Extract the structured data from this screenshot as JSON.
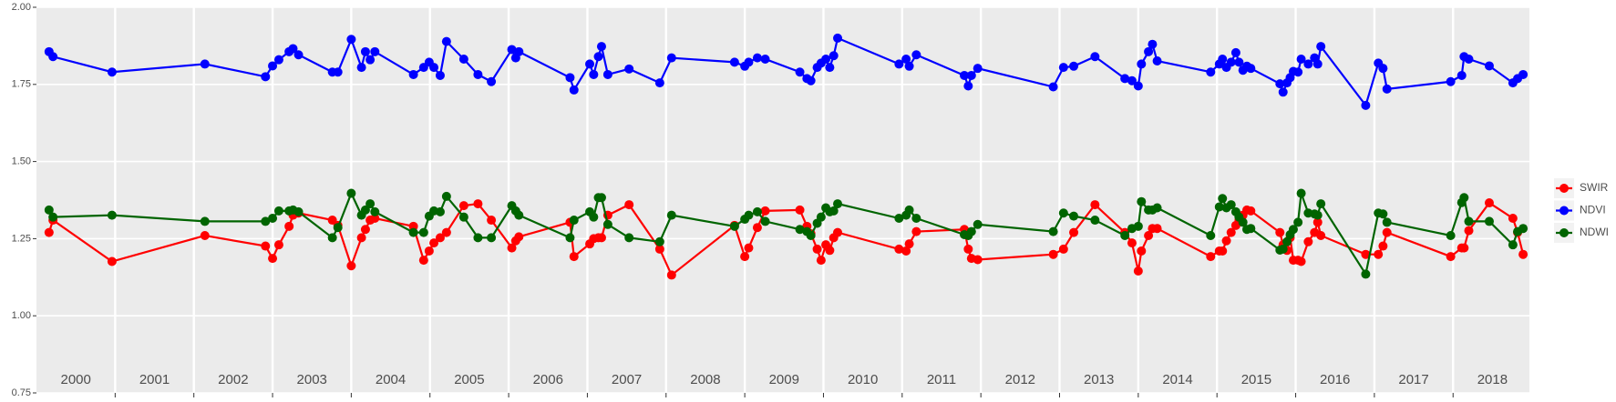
{
  "chart_data": {
    "type": "line",
    "x": [
      2000.16,
      2000.21,
      2000.96,
      2002.14,
      2002.91,
      2003.0,
      2003.08,
      2003.21,
      2003.26,
      2003.33,
      2003.76,
      2003.83,
      2004.0,
      2004.13,
      2004.18,
      2004.24,
      2004.3,
      2004.79,
      2004.92,
      2004.99,
      2005.05,
      2005.13,
      2005.21,
      2005.43,
      2005.61,
      2005.78,
      2006.04,
      2006.09,
      2006.13,
      2006.78,
      2006.83,
      2007.03,
      2007.08,
      2007.14,
      2007.18,
      2007.26,
      2007.53,
      2007.92,
      2008.07,
      2008.87,
      2009.0,
      2009.05,
      2009.16,
      2009.26,
      2009.7,
      2009.79,
      2009.84,
      2009.92,
      2009.97,
      2010.03,
      2010.08,
      2010.13,
      2010.18,
      2010.96,
      2011.05,
      2011.09,
      2011.18,
      2011.79,
      2011.84,
      2011.88,
      2011.96,
      2012.92,
      2013.05,
      2013.18,
      2013.45,
      2013.83,
      2013.92,
      2014.0,
      2014.04,
      2014.13,
      2014.18,
      2014.24,
      2014.92,
      2015.03,
      2015.07,
      2015.12,
      2015.18,
      2015.24,
      2015.28,
      2015.33,
      2015.38,
      2015.43,
      2015.8,
      2015.84,
      2015.89,
      2015.93,
      2015.97,
      2016.03,
      2016.07,
      2016.16,
      2016.24,
      2016.28,
      2016.32,
      2016.89,
      2017.05,
      2017.11,
      2017.16,
      2017.97,
      2018.11,
      2018.14,
      2018.2,
      2018.46,
      2018.76,
      2018.82,
      2018.89
    ],
    "series": [
      {
        "name": "SWIR",
        "color": "#ff0000",
        "values": [
          1.27,
          1.31,
          1.176,
          1.26,
          1.226,
          1.186,
          1.23,
          1.29,
          1.326,
          1.333,
          1.31,
          1.293,
          1.162,
          1.253,
          1.28,
          1.31,
          1.316,
          1.29,
          1.18,
          1.21,
          1.236,
          1.253,
          1.27,
          1.357,
          1.363,
          1.31,
          1.22,
          1.243,
          1.256,
          1.303,
          1.192,
          1.233,
          1.25,
          1.253,
          1.253,
          1.326,
          1.36,
          1.216,
          1.132,
          1.293,
          1.192,
          1.22,
          1.286,
          1.34,
          1.343,
          1.29,
          1.266,
          1.216,
          1.18,
          1.23,
          1.212,
          1.253,
          1.27,
          1.216,
          1.21,
          1.233,
          1.273,
          1.28,
          1.216,
          1.186,
          1.182,
          1.199,
          1.216,
          1.27,
          1.36,
          1.27,
          1.236,
          1.145,
          1.21,
          1.26,
          1.283,
          1.283,
          1.192,
          1.21,
          1.21,
          1.243,
          1.27,
          1.293,
          1.31,
          1.326,
          1.343,
          1.34,
          1.27,
          1.23,
          1.212,
          1.253,
          1.18,
          1.18,
          1.176,
          1.24,
          1.27,
          1.303,
          1.26,
          1.199,
          1.199,
          1.226,
          1.27,
          1.192,
          1.22,
          1.22,
          1.276,
          1.366,
          1.316,
          1.27,
          1.199
        ]
      },
      {
        "name": "NDVI",
        "color": "#0000ff",
        "values": [
          1.856,
          1.84,
          1.79,
          1.816,
          1.775,
          1.81,
          1.83,
          1.856,
          1.866,
          1.846,
          1.79,
          1.79,
          1.896,
          1.805,
          1.856,
          1.83,
          1.856,
          1.782,
          1.805,
          1.822,
          1.805,
          1.779,
          1.889,
          1.832,
          1.782,
          1.759,
          1.863,
          1.836,
          1.856,
          1.772,
          1.732,
          1.816,
          1.782,
          1.84,
          1.873,
          1.782,
          1.8,
          1.755,
          1.836,
          1.822,
          1.809,
          1.822,
          1.836,
          1.832,
          1.79,
          1.769,
          1.762,
          1.805,
          1.819,
          1.832,
          1.805,
          1.843,
          1.9,
          1.816,
          1.832,
          1.809,
          1.846,
          1.779,
          1.745,
          1.779,
          1.802,
          1.742,
          1.805,
          1.809,
          1.84,
          1.769,
          1.762,
          1.745,
          1.816,
          1.856,
          1.88,
          1.826,
          1.79,
          1.816,
          1.832,
          1.805,
          1.822,
          1.853,
          1.822,
          1.796,
          1.809,
          1.802,
          1.752,
          1.725,
          1.755,
          1.772,
          1.792,
          1.79,
          1.832,
          1.816,
          1.836,
          1.816,
          1.873,
          1.682,
          1.819,
          1.802,
          1.735,
          1.759,
          1.779,
          1.84,
          1.832,
          1.81,
          1.755,
          1.769,
          1.782
        ]
      },
      {
        "name": "NDWI",
        "color": "#006400",
        "values": [
          1.343,
          1.32,
          1.326,
          1.306,
          1.306,
          1.316,
          1.34,
          1.34,
          1.343,
          1.337,
          1.253,
          1.286,
          1.397,
          1.326,
          1.343,
          1.363,
          1.337,
          1.27,
          1.27,
          1.323,
          1.34,
          1.337,
          1.387,
          1.32,
          1.253,
          1.253,
          1.357,
          1.34,
          1.326,
          1.253,
          1.31,
          1.337,
          1.32,
          1.383,
          1.383,
          1.296,
          1.253,
          1.24,
          1.326,
          1.29,
          1.313,
          1.326,
          1.337,
          1.306,
          1.28,
          1.273,
          1.26,
          1.3,
          1.32,
          1.35,
          1.337,
          1.34,
          1.363,
          1.316,
          1.326,
          1.343,
          1.316,
          1.263,
          1.26,
          1.273,
          1.296,
          1.273,
          1.333,
          1.323,
          1.31,
          1.26,
          1.283,
          1.29,
          1.37,
          1.343,
          1.343,
          1.35,
          1.26,
          1.353,
          1.38,
          1.35,
          1.36,
          1.337,
          1.32,
          1.303,
          1.28,
          1.283,
          1.213,
          1.216,
          1.24,
          1.263,
          1.28,
          1.303,
          1.397,
          1.333,
          1.33,
          1.326,
          1.363,
          1.135,
          1.333,
          1.33,
          1.303,
          1.26,
          1.367,
          1.383,
          1.306,
          1.306,
          1.23,
          1.273,
          1.283
        ]
      }
    ],
    "legend_order": [
      "SWIR",
      "NDVI",
      "NDWI"
    ],
    "year_labels": [
      "2000",
      "2001",
      "2002",
      "2003",
      "2004",
      "2005",
      "2006",
      "2007",
      "2008",
      "2009",
      "2010",
      "2011",
      "2012",
      "2013",
      "2014",
      "2015",
      "2016",
      "2017",
      "2018"
    ],
    "xlim": [
      2000.0,
      2018.97
    ],
    "xticks": [
      2001,
      2002,
      2003,
      2004,
      2005,
      2006,
      2007,
      2008,
      2009,
      2010,
      2011,
      2012,
      2013,
      2014,
      2015,
      2016,
      2017,
      2018
    ],
    "ylim": [
      0.75,
      2.0
    ],
    "yticks": [
      0.75,
      {
        "value": 1.0,
        "label": "1.00"
      },
      1.25,
      {
        "value": 1.5,
        "label": "1.50"
      },
      1.75,
      {
        "value": 2.0,
        "label": "2.00"
      }
    ],
    "grid": true,
    "legend_position": "right"
  }
}
